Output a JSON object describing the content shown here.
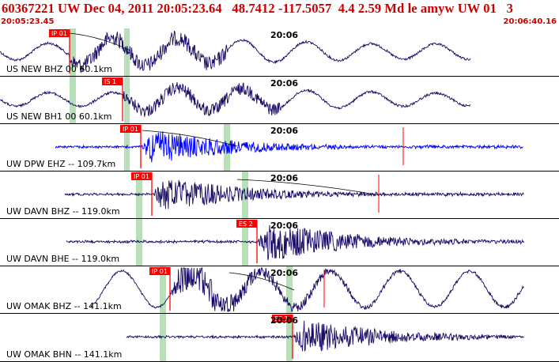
{
  "header": {
    "event_title": "60367221 UW Dec 04, 2011 20:05:23.64   48.7412 -117.5057  4.4 2.59 Md le amyw UW 01   3",
    "start_time": "20:05:23.45",
    "end_time": "20:06:40.16"
  },
  "colors": {
    "waveform": "#1a0a66",
    "waveform_highlight": "#0000ff",
    "pick": "#ff0000",
    "arrival_window": "#b8e0b8",
    "header_text": "#cc0000"
  },
  "tick_label": "20:06",
  "traces": [
    {
      "label": "US NEW BHZ 00 60.1km",
      "pick": "IP 01",
      "color": "#1a0a66"
    },
    {
      "label": "US NEW BH1 00 60.1km",
      "pick": "IS 1",
      "color": "#1a0a66"
    },
    {
      "label": "UW DPW EHZ -- 109.7km",
      "pick": "IP 01",
      "color": "#0000ff"
    },
    {
      "label": "UW DAVN BHZ -- 119.0km",
      "pick": "IP 01",
      "color": "#1a0a66"
    },
    {
      "label": "UW DAVN BHE -- 119.0km",
      "pick": "ES 2",
      "color": "#1a0a66"
    },
    {
      "label": "UW OMAK BHZ -- 141.1km",
      "pick": "IP 01",
      "color": "#1a0a66"
    },
    {
      "label": "UW OMAK BHN -- 141.1km",
      "pick": "ES 1",
      "color": "#1a0a66"
    }
  ]
}
